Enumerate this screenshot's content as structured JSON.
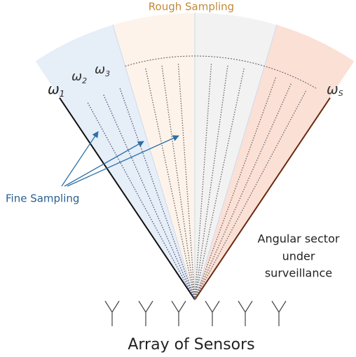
{
  "header": {
    "title": "Rough Sampling"
  },
  "angles": [
    {
      "symbol": "ω",
      "sub": "1"
    },
    {
      "symbol": "ω",
      "sub": "2"
    },
    {
      "symbol": "ω",
      "sub": "3"
    },
    {
      "symbol": "ω",
      "sub": "S"
    }
  ],
  "fine_label": "Fine Sampling",
  "sector_label": [
    "Angular sector",
    "under",
    "surveillance"
  ],
  "footer": "Array of Sensors"
}
